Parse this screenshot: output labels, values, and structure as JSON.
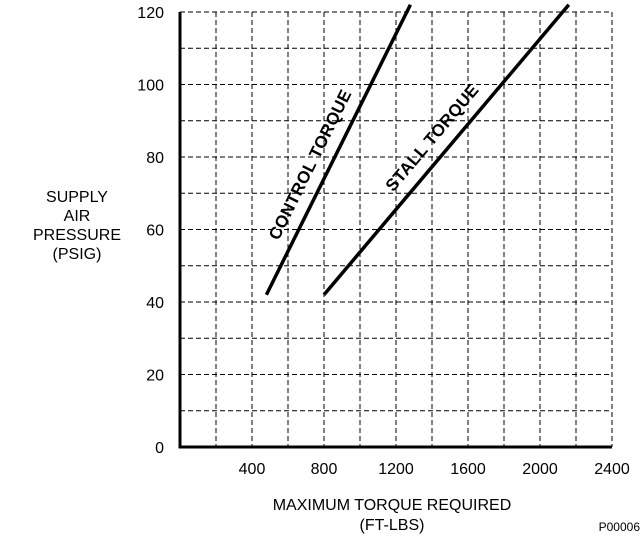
{
  "chart_data": {
    "type": "line",
    "title": "",
    "xlabel": "MAXIMUM TORQUE REQUIRED",
    "xlabel_units": "(FT-LBS)",
    "ylabel_lines": [
      "SUPPLY",
      "AIR",
      "PRESSURE",
      "(PSIG)"
    ],
    "xlim": [
      0,
      2400
    ],
    "ylim": [
      0,
      120
    ],
    "x_ticks": [
      0,
      400,
      800,
      1200,
      1600,
      2000,
      2400
    ],
    "x_tick_labels": [
      "400",
      "800",
      "1200",
      "1600",
      "2000",
      "2400"
    ],
    "y_ticks": [
      0,
      20,
      40,
      60,
      80,
      100,
      120
    ],
    "y_tick_labels": [
      "0",
      "20",
      "40",
      "60",
      "80",
      "100",
      "120"
    ],
    "grid": true,
    "grid_style": "dashed",
    "grid_x_step": 200,
    "grid_y_step": 10,
    "legend": "none",
    "series": [
      {
        "name": "CONTROL TORQUE",
        "x": [
          480,
          1280
        ],
        "y": [
          42,
          122
        ]
      },
      {
        "name": "STALL TORQUE",
        "x": [
          800,
          2160
        ],
        "y": [
          42,
          122
        ]
      }
    ],
    "annotations": [
      "P00006"
    ]
  }
}
